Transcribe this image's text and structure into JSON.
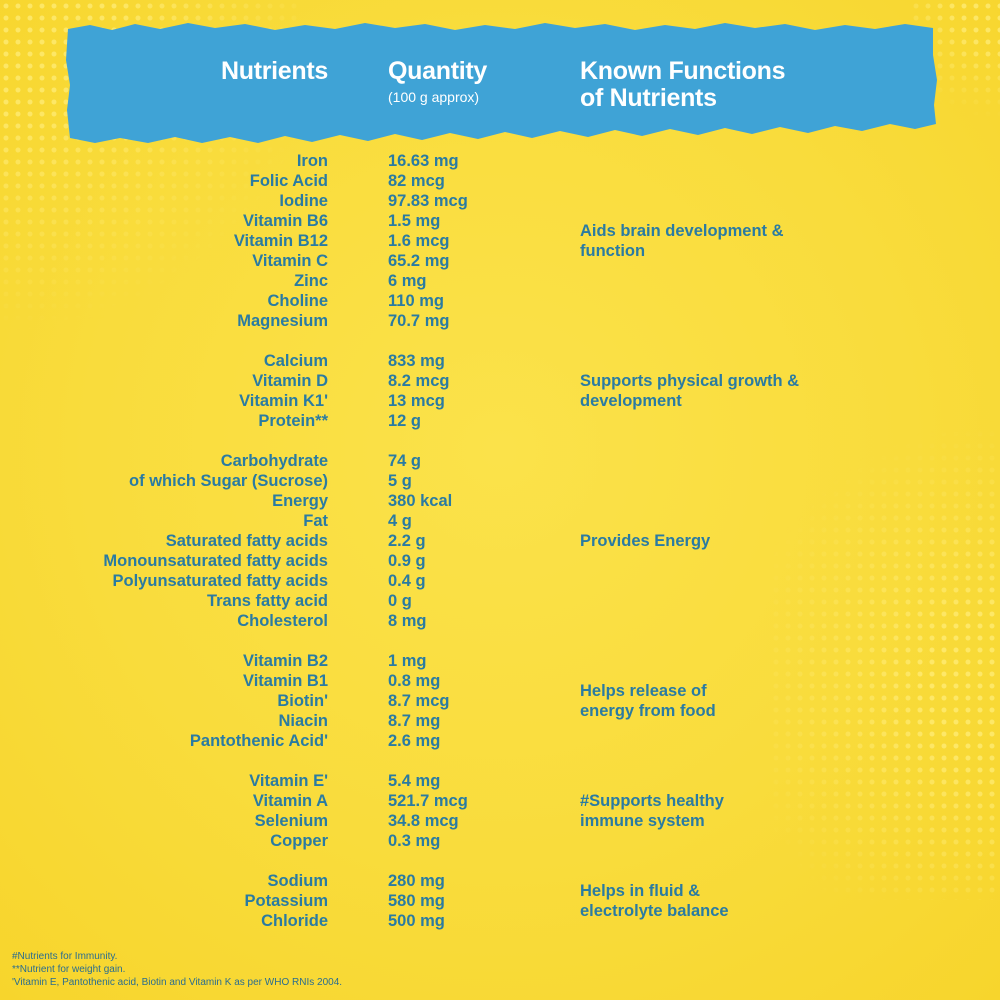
{
  "header": {
    "nutrients": "Nutrients",
    "quantity": "Quantity",
    "quantity_sub": "(100 g approx)",
    "functions_line1": "Known Functions",
    "functions_line2": "of Nutrients"
  },
  "colors": {
    "background": "#f9dc3c",
    "banner": "#3fa3d6",
    "text": "#2a7ba2",
    "header_text": "#ffffff"
  },
  "groups": [
    {
      "function_lines": [
        "Aids brain development &",
        "function"
      ],
      "rows": [
        {
          "nutrient": "Iron",
          "quantity": "16.63 mg"
        },
        {
          "nutrient": "Folic Acid",
          "quantity": "82 mcg"
        },
        {
          "nutrient": "Iodine",
          "quantity": "97.83 mcg"
        },
        {
          "nutrient": "Vitamin B6",
          "quantity": "1.5 mg"
        },
        {
          "nutrient": "Vitamin B12",
          "quantity": "1.6 mcg"
        },
        {
          "nutrient": "Vitamin C",
          "quantity": "65.2 mg"
        },
        {
          "nutrient": "Zinc",
          "quantity": "6 mg"
        },
        {
          "nutrient": "Choline",
          "quantity": "110 mg"
        },
        {
          "nutrient": "Magnesium",
          "quantity": "70.7 mg"
        }
      ]
    },
    {
      "function_lines": [
        "Supports physical growth &",
        "development"
      ],
      "rows": [
        {
          "nutrient": "Calcium",
          "quantity": "833 mg"
        },
        {
          "nutrient": "Vitamin D",
          "quantity": "8.2 mcg"
        },
        {
          "nutrient": "Vitamin K1'",
          "quantity": "13 mcg"
        },
        {
          "nutrient": "Protein**",
          "quantity": "12 g"
        }
      ]
    },
    {
      "function_lines": [
        "Provides Energy"
      ],
      "rows": [
        {
          "nutrient": "Carbohydrate",
          "quantity": "74 g"
        },
        {
          "nutrient": "of which Sugar (Sucrose)",
          "quantity": "5 g"
        },
        {
          "nutrient": "Energy",
          "quantity": "380 kcal"
        },
        {
          "nutrient": "Fat",
          "quantity": "4 g"
        },
        {
          "nutrient": "Saturated fatty acids",
          "quantity": "2.2 g"
        },
        {
          "nutrient": "Monounsaturated fatty acids",
          "quantity": "0.9 g"
        },
        {
          "nutrient": "Polyunsaturated fatty acids",
          "quantity": "0.4 g"
        },
        {
          "nutrient": "Trans fatty acid",
          "quantity": "0 g"
        },
        {
          "nutrient": "Cholesterol",
          "quantity": "8 mg"
        }
      ]
    },
    {
      "function_lines": [
        "Helps release of",
        "energy from food"
      ],
      "rows": [
        {
          "nutrient": "Vitamin B2",
          "quantity": "1 mg"
        },
        {
          "nutrient": "Vitamin B1",
          "quantity": "0.8 mg"
        },
        {
          "nutrient": "Biotin'",
          "quantity": "8.7 mcg"
        },
        {
          "nutrient": "Niacin",
          "quantity": "8.7 mg"
        },
        {
          "nutrient": "Pantothenic Acid'",
          "quantity": "2.6 mg"
        }
      ]
    },
    {
      "function_lines": [
        "#Supports healthy",
        "immune system"
      ],
      "rows": [
        {
          "nutrient": "Vitamin E'",
          "quantity": "5.4 mg"
        },
        {
          "nutrient": "Vitamin A",
          "quantity": "521.7 mcg"
        },
        {
          "nutrient": "Selenium",
          "quantity": "34.8 mcg"
        },
        {
          "nutrient": "Copper",
          "quantity": "0.3 mg"
        }
      ]
    },
    {
      "function_lines": [
        "Helps in fluid &",
        "electrolyte balance"
      ],
      "rows": [
        {
          "nutrient": "Sodium",
          "quantity": "280 mg"
        },
        {
          "nutrient": "Potassium",
          "quantity": "580 mg"
        },
        {
          "nutrient": "Chloride",
          "quantity": "500 mg"
        }
      ]
    }
  ],
  "footnotes": [
    "#Nutrients for Immunity.",
    "**Nutrient for weight gain.",
    "'Vitamin E, Pantothenic acid, Biotin and Vitamin K as per WHO RNIs 2004."
  ]
}
